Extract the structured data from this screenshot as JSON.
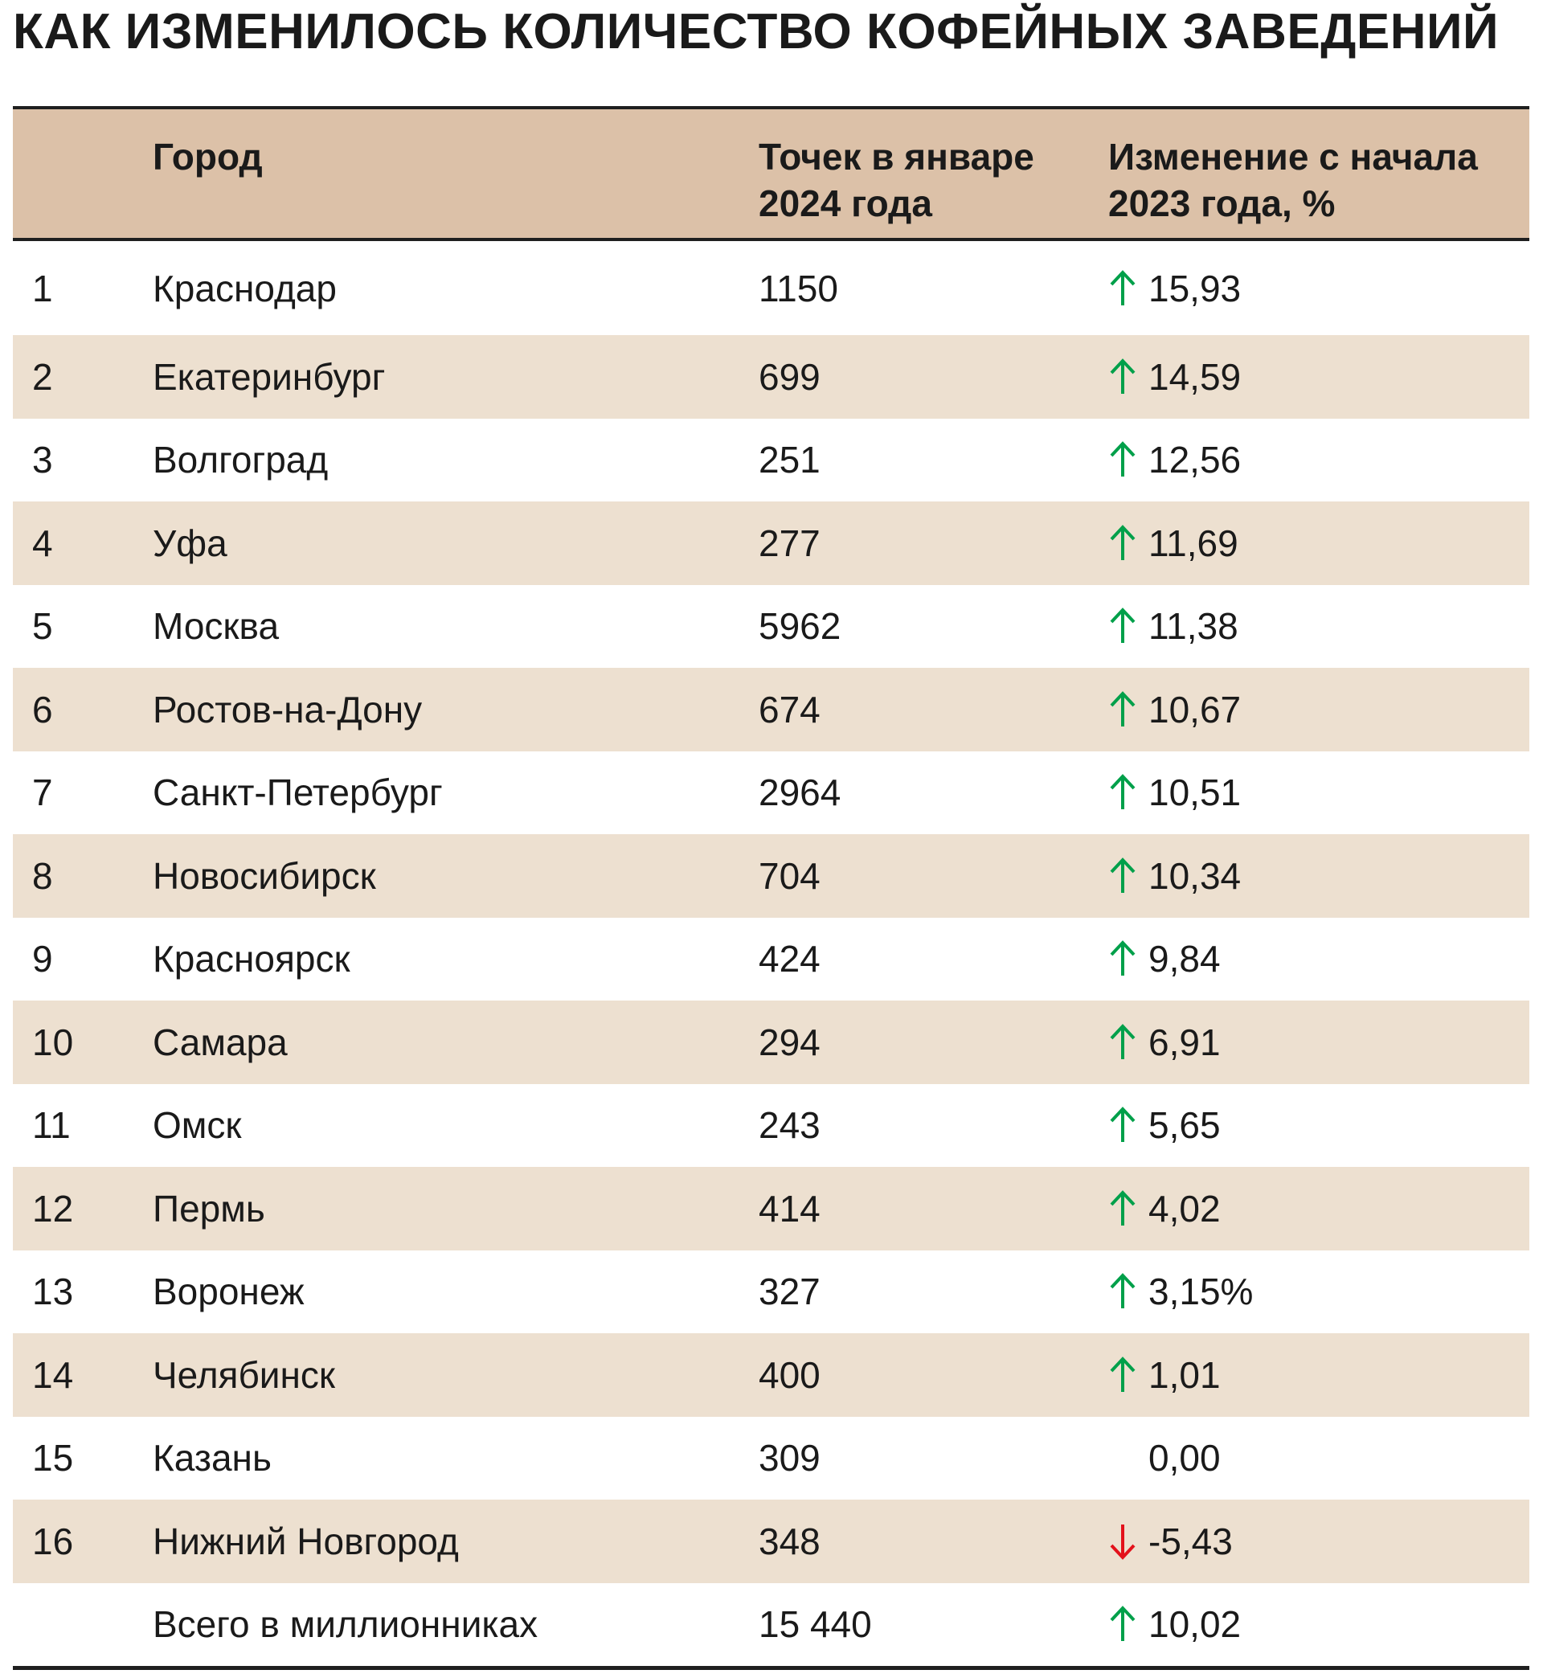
{
  "title": "КАК ИЗМЕНИЛОСЬ КОЛИЧЕСТВО КОФЕЙНЫХ ЗАВЕДЕНИЙ",
  "colors": {
    "header_bg": "#dcc1a8",
    "stripe_bg": "#ede0d0",
    "up": "#00a04a",
    "down": "#e3111b"
  },
  "headers": {
    "rank": "",
    "city": "Город",
    "count_line1": "Точек в январе",
    "count_line2": "2024 года",
    "change_line1": "Изменение с начала",
    "change_line2": "2023 года, %"
  },
  "rows": [
    {
      "rank": "1",
      "city": "Краснодар",
      "count": "1150",
      "change": "15,93",
      "trend": "up"
    },
    {
      "rank": "2",
      "city": "Екатеринбург",
      "count": "699",
      "change": "14,59",
      "trend": "up"
    },
    {
      "rank": "3",
      "city": "Волгоград",
      "count": "251",
      "change": "12,56",
      "trend": "up"
    },
    {
      "rank": "4",
      "city": "Уфа",
      "count": "277",
      "change": "11,69",
      "trend": "up"
    },
    {
      "rank": "5",
      "city": "Москва",
      "count": "5962",
      "change": "11,38",
      "trend": "up"
    },
    {
      "rank": "6",
      "city": "Ростов-на-Дону",
      "count": "674",
      "change": "10,67",
      "trend": "up"
    },
    {
      "rank": "7",
      "city": "Санкт-Петербург",
      "count": "2964",
      "change": "10,51",
      "trend": "up"
    },
    {
      "rank": "8",
      "city": "Новосибирск",
      "count": "704",
      "change": "10,34",
      "trend": "up"
    },
    {
      "rank": "9",
      "city": "Красноярск",
      "count": "424",
      "change": "9,84",
      "trend": "up"
    },
    {
      "rank": "10",
      "city": "Самара",
      "count": "294",
      "change": "6,91",
      "trend": "up"
    },
    {
      "rank": "11",
      "city": "Омск",
      "count": "243",
      "change": "5,65",
      "trend": "up"
    },
    {
      "rank": "12",
      "city": "Пермь",
      "count": "414",
      "change": "4,02",
      "trend": "up"
    },
    {
      "rank": "13",
      "city": "Воронеж",
      "count": "327",
      "change": "3,15%",
      "trend": "up"
    },
    {
      "rank": "14",
      "city": "Челябинск",
      "count": "400",
      "change": "1,01",
      "trend": "up"
    },
    {
      "rank": "15",
      "city": "Казань",
      "count": "309",
      "change": "0,00",
      "trend": "none"
    },
    {
      "rank": "16",
      "city": "Нижний Новгород",
      "count": "348",
      "change": "-5,43",
      "trend": "down"
    },
    {
      "rank": "",
      "city": "Всего в миллионниках",
      "count": "15 440",
      "change": "10,02",
      "trend": "up"
    }
  ]
}
